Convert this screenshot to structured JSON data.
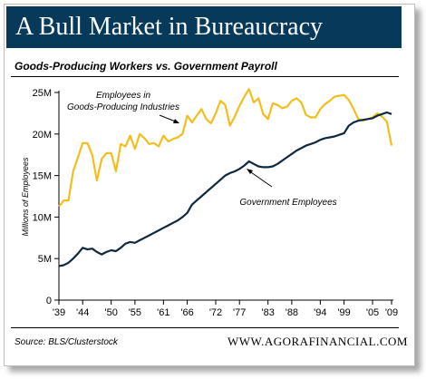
{
  "header": {
    "title": "A Bull Market in Bureaucracy",
    "subtitle": "Goods-Producing Workers vs. Government Payroll"
  },
  "footer": {
    "source": "Source: BLS/Clusterstock",
    "site": "WWW.AGORAFINANCIAL.COM"
  },
  "colors": {
    "title_bg": "#06395a",
    "goods_line": "#f2be1e",
    "gov_line": "#0d2940"
  },
  "chart_data": {
    "type": "line",
    "ylabel": "Millions of Employees",
    "xlabel": "",
    "xlim": [
      1939,
      2009
    ],
    "ylim": [
      0,
      25
    ],
    "grid": false,
    "x_ticks": [
      1939,
      1944,
      1950,
      1955,
      1961,
      1966,
      1972,
      1977,
      1983,
      1988,
      1994,
      1999,
      2005,
      2009
    ],
    "x_tick_labels": [
      "'39",
      "'44",
      "'50",
      "'55",
      "'61",
      "'66",
      "'72",
      "'77",
      "'83",
      "'88",
      "'94",
      "'99",
      "'05",
      "'09"
    ],
    "y_ticks": [
      0,
      5,
      10,
      15,
      20,
      25
    ],
    "y_tick_labels": [
      "0",
      "5M",
      "10M",
      "15M",
      "20M",
      "25M"
    ],
    "series": [
      {
        "name": "Employees in Goods-Producing Industries",
        "label_lines": [
          "Employees in",
          "Goods-Producing Industries"
        ],
        "color": "#f2be1e",
        "x": [
          1939,
          1939.5,
          1940,
          1941,
          1942,
          1943,
          1944,
          1945,
          1946,
          1947,
          1948,
          1949,
          1950,
          1951,
          1952,
          1953,
          1954,
          1955,
          1956,
          1957,
          1958,
          1959,
          1960,
          1961,
          1962,
          1963,
          1964,
          1965,
          1966,
          1967,
          1968,
          1969,
          1970,
          1971,
          1972,
          1973,
          1974,
          1975,
          1976,
          1977,
          1978,
          1979,
          1980,
          1981,
          1982,
          1983,
          1984,
          1985,
          1986,
          1987,
          1988,
          1989,
          1990,
          1991,
          1992,
          1993,
          1994,
          1995,
          1996,
          1997,
          1998,
          1999,
          2000,
          2001,
          2002,
          2003,
          2004,
          2005,
          2006,
          2007,
          2008,
          2009
        ],
        "values": [
          11.3,
          11.6,
          12.0,
          12.0,
          15.5,
          17.2,
          18.9,
          18.9,
          17.5,
          14.4,
          17.0,
          17.7,
          17.7,
          15.5,
          18.8,
          18.5,
          19.8,
          18.2,
          20.0,
          19.5,
          18.8,
          18.9,
          18.5,
          19.8,
          19.1,
          19.4,
          19.6,
          20.0,
          22.2,
          21.4,
          22.2,
          23.0,
          21.8,
          21.3,
          22.5,
          24.0,
          23.5,
          21.0,
          22.1,
          23.4,
          24.5,
          25.4,
          23.8,
          24.3,
          22.4,
          21.8,
          23.7,
          23.5,
          23.1,
          23.3,
          24.0,
          24.3,
          23.8,
          22.3,
          22.0,
          22.0,
          23.0,
          23.6,
          24.0,
          24.5,
          24.6,
          24.7,
          24.1,
          23.0,
          21.8,
          21.6,
          21.8,
          22.0,
          22.5,
          22.1,
          21.5,
          18.6
        ]
      },
      {
        "name": "Government Employees",
        "label_lines": [
          "Government Employees"
        ],
        "color": "#0d2940",
        "x": [
          1939,
          1940,
          1941,
          1942,
          1943,
          1944,
          1945,
          1946,
          1947,
          1948,
          1949,
          1950,
          1951,
          1952,
          1953,
          1954,
          1955,
          1956,
          1957,
          1958,
          1959,
          1960,
          1961,
          1962,
          1963,
          1964,
          1965,
          1966,
          1967,
          1968,
          1969,
          1970,
          1971,
          1972,
          1973,
          1974,
          1975,
          1976,
          1977,
          1978,
          1979,
          1980,
          1981,
          1982,
          1983,
          1984,
          1985,
          1986,
          1987,
          1988,
          1989,
          1990,
          1991,
          1992,
          1993,
          1994,
          1995,
          1996,
          1997,
          1998,
          1999,
          2000,
          2001,
          2002,
          2003,
          2004,
          2005,
          2006,
          2007,
          2008,
          2009
        ],
        "values": [
          4.1,
          4.2,
          4.5,
          5.0,
          5.6,
          6.3,
          6.1,
          6.2,
          5.8,
          5.5,
          5.8,
          6.0,
          5.9,
          6.3,
          6.8,
          7.0,
          6.9,
          7.2,
          7.5,
          7.8,
          8.1,
          8.4,
          8.7,
          9.0,
          9.3,
          9.6,
          10.0,
          10.5,
          11.5,
          12.0,
          12.5,
          13.0,
          13.5,
          14.0,
          14.5,
          15.0,
          15.3,
          15.5,
          15.8,
          16.2,
          16.7,
          16.4,
          16.1,
          16.0,
          16.0,
          16.1,
          16.4,
          16.8,
          17.2,
          17.6,
          18.0,
          18.3,
          18.6,
          18.8,
          19.0,
          19.3,
          19.5,
          19.6,
          19.7,
          19.9,
          20.1,
          21.0,
          21.4,
          21.6,
          21.7,
          21.8,
          21.9,
          22.2,
          22.4,
          22.6,
          22.4
        ]
      }
    ]
  }
}
